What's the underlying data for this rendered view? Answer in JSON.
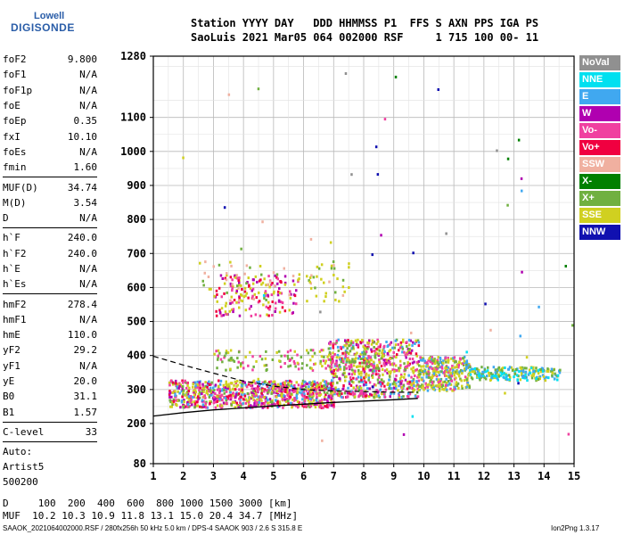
{
  "logo": {
    "line1": "Lowell",
    "line2": "DIGISONDE"
  },
  "header": {
    "line1": "Station YYYY DAY   DDD HHMMSS P1  FFS S AXN PPS IGA PS",
    "line2": "SaoLuis 2021 Mar05 064 002000 RSF     1 715 100 00- 11"
  },
  "params": {
    "group1": [
      {
        "k": "foF2",
        "v": "9.800"
      },
      {
        "k": "foF1",
        "v": "N/A"
      },
      {
        "k": "foF1p",
        "v": "N/A"
      },
      {
        "k": "foE",
        "v": "N/A"
      },
      {
        "k": "foEp",
        "v": "0.35"
      },
      {
        "k": "fxI",
        "v": "10.10"
      },
      {
        "k": "foEs",
        "v": "N/A"
      },
      {
        "k": "fmin",
        "v": "1.60"
      }
    ],
    "group2": [
      {
        "k": "MUF(D)",
        "v": "34.74"
      },
      {
        "k": "M(D)",
        "v": "3.54"
      },
      {
        "k": "D",
        "v": "N/A"
      }
    ],
    "group3": [
      {
        "k": "h`F",
        "v": "240.0"
      },
      {
        "k": "h`F2",
        "v": "240.0"
      },
      {
        "k": "h`E",
        "v": "N/A"
      },
      {
        "k": "h`Es",
        "v": "N/A"
      }
    ],
    "group4": [
      {
        "k": "hmF2",
        "v": "278.4"
      },
      {
        "k": "hmF1",
        "v": "N/A"
      },
      {
        "k": "hmE",
        "v": "110.0"
      },
      {
        "k": "yF2",
        "v": "29.2"
      },
      {
        "k": "yF1",
        "v": "N/A"
      },
      {
        "k": "yE",
        "v": "20.0"
      },
      {
        "k": "B0",
        "v": "31.1"
      },
      {
        "k": "B1",
        "v": "1.57"
      }
    ],
    "clevel": {
      "k": "C-level",
      "v": "33"
    },
    "auto": [
      "Auto:",
      "Artist5",
      "500200"
    ]
  },
  "legend": [
    {
      "label": "NoVal",
      "color": "#909090"
    },
    {
      "label": "NNE",
      "color": "#00e0f0"
    },
    {
      "label": "E",
      "color": "#40a8f0"
    },
    {
      "label": "W",
      "color": "#b000b0"
    },
    {
      "label": "Vo-",
      "color": "#f040a0"
    },
    {
      "label": "Vo+",
      "color": "#f00040"
    },
    {
      "label": "SSW",
      "color": "#f0b0a0"
    },
    {
      "label": "X-",
      "color": "#008000"
    },
    {
      "label": "X+",
      "color": "#70b040"
    },
    {
      "label": "SSE",
      "color": "#d0d020"
    },
    {
      "label": "NNW",
      "color": "#1010b0"
    }
  ],
  "muf_table": {
    "line1": "D     100  200  400  600  800 1000 1500 3000 [km]",
    "line2": "MUF  10.2 10.3 10.9 11.8 13.1 15.0 20.4 34.7 [MHz]"
  },
  "footer": {
    "left": "SAAOK_2021064002000.RSF / 280fx256h 50 kHz 5.0 km / DPS-4 SAAOK 903 / 2.6 S 315.8 E",
    "right": "Ion2Png 1.3.17"
  },
  "chart_data": {
    "type": "scatter",
    "xlim": [
      1,
      15
    ],
    "ylim": [
      80,
      1280
    ],
    "xticks": [
      1,
      2,
      3,
      4,
      5,
      6,
      7,
      8,
      9,
      10,
      11,
      12,
      13,
      14,
      15
    ],
    "yticks": [
      80,
      200,
      300,
      400,
      500,
      600,
      700,
      800,
      900,
      1000,
      1100,
      1280
    ],
    "grid": true,
    "profile": {
      "x": [
        1.0,
        2.0,
        3.0,
        4.0,
        5.0,
        6.0,
        7.0,
        8.0,
        9.0,
        9.8
      ],
      "y": [
        222,
        232,
        240,
        246,
        252,
        257,
        262,
        266,
        270,
        274
      ]
    },
    "profile_dashed": {
      "x": [
        1.0,
        2.0,
        3.0,
        4.0,
        5.0,
        6.0,
        7.0,
        8.0,
        9.0,
        9.8
      ],
      "y": [
        398,
        372,
        348,
        325,
        310,
        300,
        296,
        294,
        292,
        292
      ]
    }
  }
}
